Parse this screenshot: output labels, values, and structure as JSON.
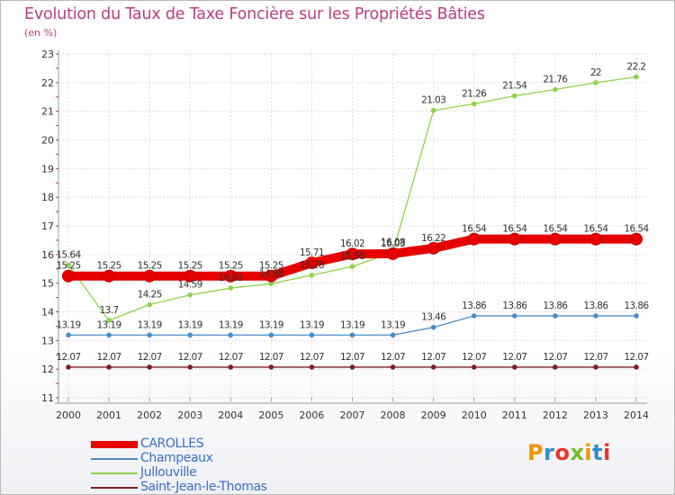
{
  "header": {
    "title": "Evolution du Taux de Taxe Foncière sur les Propriétés Bâties",
    "unit": "(en %)"
  },
  "logo": {
    "text": "Proxiti",
    "colors": [
      "#f29400",
      "#2f8fd0",
      "#e5352d",
      "#7ab929",
      "#f29400",
      "#2f8fd0",
      "#e5352d"
    ]
  },
  "chart_data": {
    "type": "line",
    "title": "Evolution du Taux de Taxe Foncière sur les Propriétés Bâties",
    "ylabel": "(en %)",
    "xlabel": "",
    "ylim": [
      11,
      23
    ],
    "yticks": [
      11,
      12,
      13,
      14,
      15,
      16,
      17,
      18,
      19,
      20,
      21,
      22,
      23
    ],
    "grid": true,
    "categories": [
      "2000",
      "2001",
      "2002",
      "2003",
      "2004",
      "2005",
      "2006",
      "2007",
      "2008",
      "2009",
      "2010",
      "2011",
      "2012",
      "2013",
      "2014"
    ],
    "series": [
      {
        "name": "CAROLLES",
        "color": "#e60000",
        "values": [
          15.25,
          15.25,
          15.25,
          15.25,
          15.25,
          15.25,
          15.71,
          16.02,
          16.03,
          16.22,
          16.54,
          16.54,
          16.54,
          16.54,
          16.54
        ],
        "labels": [
          "15.25",
          "15.25",
          "15.25",
          "15.25",
          "15.25",
          "15.25",
          "15.71",
          "16.02",
          "16.03",
          "16.22",
          "16.54",
          "16.54",
          "16.54",
          "16.54",
          "16.54"
        ]
      },
      {
        "name": "Champeaux",
        "color": "#4a8cc8",
        "values": [
          13.19,
          13.19,
          13.19,
          13.19,
          13.19,
          13.19,
          13.19,
          13.19,
          13.19,
          13.46,
          13.86,
          13.86,
          13.86,
          13.86,
          13.86
        ],
        "labels": [
          "13.19",
          "13.19",
          "13.19",
          "13.19",
          "13.19",
          "13.19",
          "13.19",
          "13.19",
          "13.19",
          "13.46",
          "13.86",
          "13.86",
          "13.86",
          "13.86",
          "13.86"
        ]
      },
      {
        "name": "Jullouville",
        "color": "#8fd24b",
        "values": [
          15.64,
          13.7,
          14.25,
          14.59,
          14.83,
          14.98,
          15.28,
          15.58,
          16.08,
          21.03,
          21.26,
          21.54,
          21.76,
          22,
          22.2
        ],
        "labels": [
          "15.64",
          "13.7",
          "14.25",
          "14.59",
          "14.83",
          "14.98",
          "15.28",
          "15.58",
          "16.08",
          "21.03",
          "21.26",
          "21.54",
          "21.76",
          "22",
          "22.2"
        ]
      },
      {
        "name": "Saint-Jean-le-Thomas",
        "color": "#7a1f25",
        "values": [
          12.07,
          12.07,
          12.07,
          12.07,
          12.07,
          12.07,
          12.07,
          12.07,
          12.07,
          12.07,
          12.07,
          12.07,
          12.07,
          12.07,
          12.07
        ],
        "labels": [
          "12.07",
          "12.07",
          "12.07",
          "12.07",
          "12.07",
          "12.07",
          "12.07",
          "12.07",
          "12.07",
          "12.07",
          "12.07",
          "12.07",
          "12.07",
          "12.07",
          "12.07"
        ]
      }
    ]
  }
}
